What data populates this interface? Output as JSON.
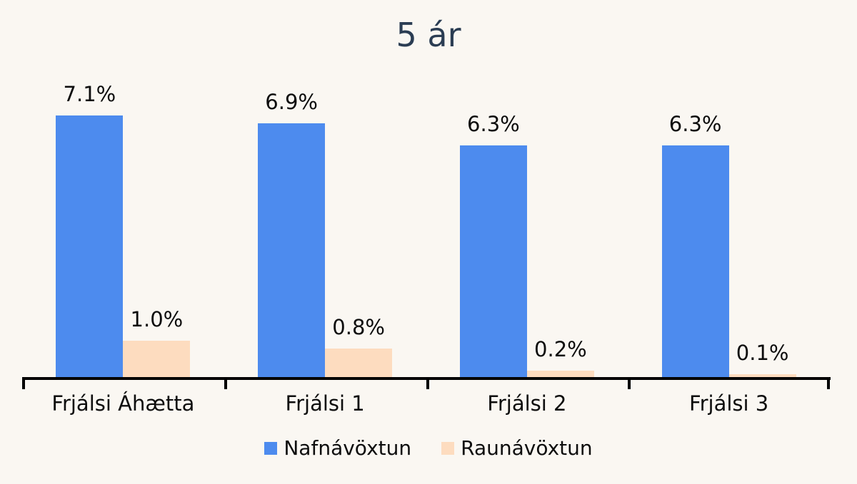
{
  "colors": {
    "background": "#FAF7F2",
    "title_text": "#2B3D53",
    "axis": "#000000",
    "label_text": "#0D0D0D"
  },
  "chart_data": {
    "type": "bar",
    "title": "5 ár",
    "categories": [
      "Frjálsi Áhætta",
      "Frjálsi 1",
      "Frjálsi 2",
      "Frjálsi 3"
    ],
    "series": [
      {
        "name": "Nafnávöxtun",
        "color": "#4D8BEE",
        "values": [
          7.1,
          6.9,
          6.3,
          6.3
        ]
      },
      {
        "name": "Raunávöxtun",
        "color": "#FDDCBF",
        "values": [
          1.0,
          0.8,
          0.2,
          0.1
        ]
      }
    ],
    "value_labels": [
      [
        "7.1%",
        "6.9%",
        "6.3%",
        "6.3%"
      ],
      [
        "1.0%",
        "0.8%",
        "0.2%",
        "0.1%"
      ]
    ],
    "xlabel": "",
    "ylabel": "",
    "ylim": [
      0,
      8.3
    ],
    "grid": false,
    "legend_position": "bottom",
    "value_label_format": "one-decimal-percent"
  }
}
